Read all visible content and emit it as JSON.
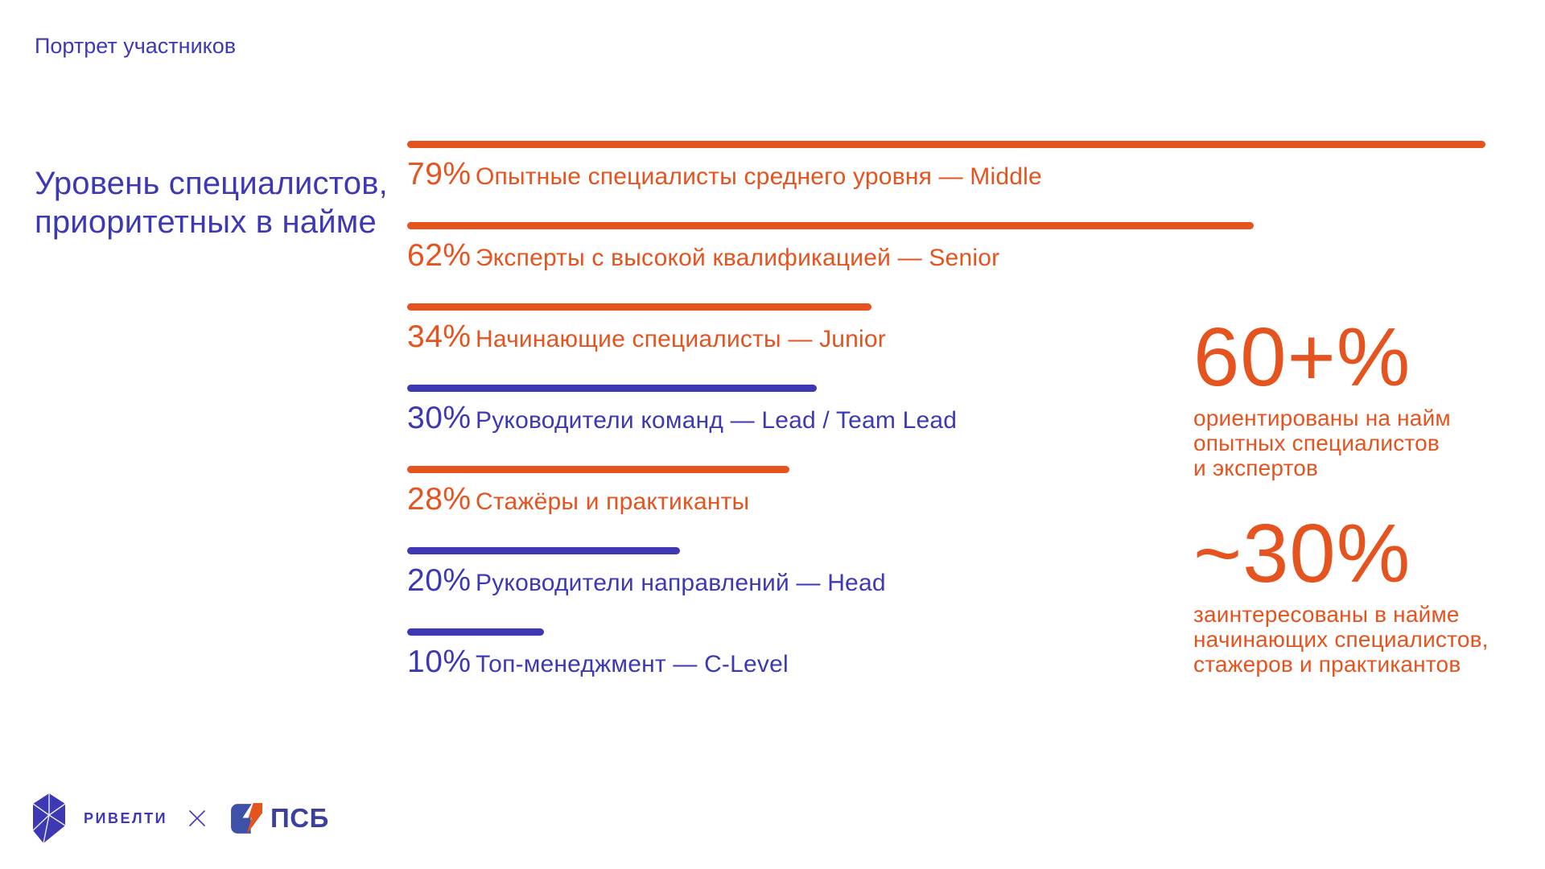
{
  "page": {
    "kicker": "Портрет участников",
    "title": "Уровень специалистов,\nприоритетных в найме"
  },
  "colors": {
    "orange": "#E5531F",
    "indigo": "#3D39B4",
    "psb_blue": "#3E51A8",
    "psb_text_blue": "#3B409C",
    "background": "#FFFFFF"
  },
  "chart_data": {
    "type": "bar",
    "orientation": "horizontal",
    "title": "Уровень специалистов, приоритетных в найме",
    "unit": "%",
    "xlim": [
      0,
      100
    ],
    "grid": false,
    "legend": false,
    "categories": [
      "Опытные специалисты среднего уровня — Middle",
      "Эксперты с высокой квалификацией — Senior",
      "Начинающие специалисты — Junior",
      "Руководители команд — Lead / Team Lead",
      "Стажёры и практиканты",
      "Руководители направлений — Head",
      "Топ-менеджмент — C-Level"
    ],
    "values": [
      79,
      62,
      34,
      30,
      28,
      20,
      10
    ],
    "bar_colors": [
      "#E5531F",
      "#E5531F",
      "#E5531F",
      "#3D39B4",
      "#E5531F",
      "#3D39B4",
      "#3D39B4"
    ]
  },
  "rows": [
    {
      "percent": "79%",
      "label": "Опытные специалисты среднего уровня — Middle",
      "value": 79,
      "color": "#E5531F",
      "tone": "c-orange"
    },
    {
      "percent": "62%",
      "label": "Эксперты с высокой квалификацией — Senior",
      "value": 62,
      "color": "#E5531F",
      "tone": "c-orange"
    },
    {
      "percent": "34%",
      "label": "Начинающие специалисты — Junior",
      "value": 34,
      "color": "#E5531F",
      "tone": "c-orange"
    },
    {
      "percent": "30%",
      "label": "Руководители команд — Lead / Team Lead",
      "value": 30,
      "color": "#3D39B4",
      "tone": "c-indigo"
    },
    {
      "percent": "28%",
      "label": "Стажёры и практиканты",
      "value": 28,
      "color": "#E5531F",
      "tone": "c-orange"
    },
    {
      "percent": "20%",
      "label": "Руководители направлений — Head",
      "value": 20,
      "color": "#3D39B4",
      "tone": "c-indigo"
    },
    {
      "percent": "10%",
      "label": "Топ-менеджмент — C-Level",
      "value": 10,
      "color": "#3D39B4",
      "tone": "c-indigo"
    }
  ],
  "highlights": [
    {
      "value": "60+%",
      "caption": "ориентированы на найм\nопытных специалистов\nи экспертов"
    },
    {
      "value": "~30%",
      "caption": "заинтересованы в найме\nначинающих специалистов,\nстажеров и практикантов"
    }
  ],
  "footer": {
    "rivelti_label": "РИВЕЛТИ",
    "separator": "×",
    "psb_label": "ПСБ"
  }
}
